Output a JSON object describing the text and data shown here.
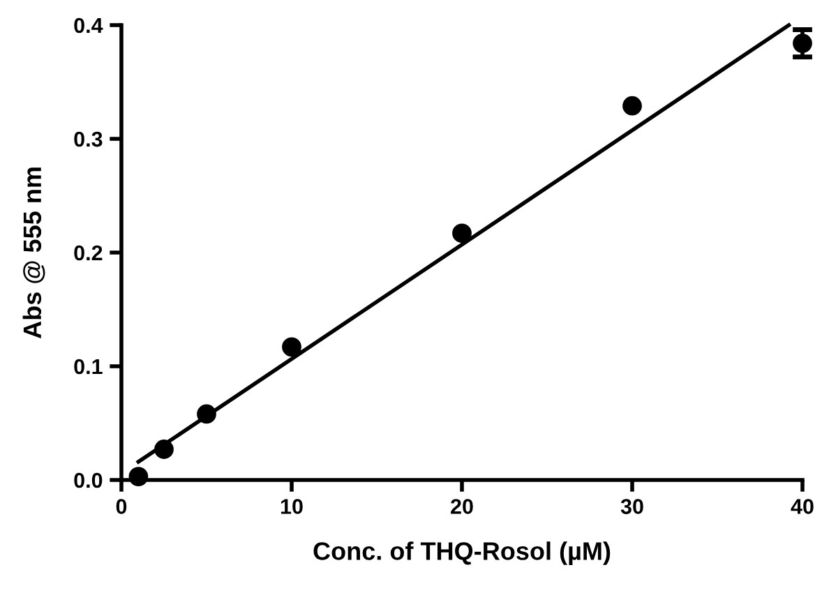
{
  "chart_data": {
    "type": "scatter",
    "xlabel": "Conc. of THQ-Rosol (µM)",
    "ylabel": "Abs @ 555 nm",
    "xlim": [
      0,
      40
    ],
    "xticks": [
      0,
      10,
      20,
      30,
      40
    ],
    "ylim": [
      0,
      0.4
    ],
    "yticks": [
      {
        "value": 0,
        "label": "0.0"
      },
      0.1,
      0.2,
      0.3,
      0.4
    ],
    "grid": false,
    "legend": false,
    "series": [
      {
        "marker": "circle",
        "color": "#000000",
        "x": [
          1,
          2.5,
          5,
          10,
          20,
          30,
          40
        ],
        "values": [
          0.003,
          0.027,
          0.058,
          0.117,
          0.217,
          0.329,
          0.384
        ],
        "errors": [
          null,
          null,
          null,
          null,
          null,
          null,
          0.012
        ]
      },
      {
        "type": "line",
        "color": "#000000",
        "x": [
          1,
          39.2
        ],
        "values": [
          0.016,
          0.4
        ],
        "line_style": "solid"
      }
    ]
  }
}
